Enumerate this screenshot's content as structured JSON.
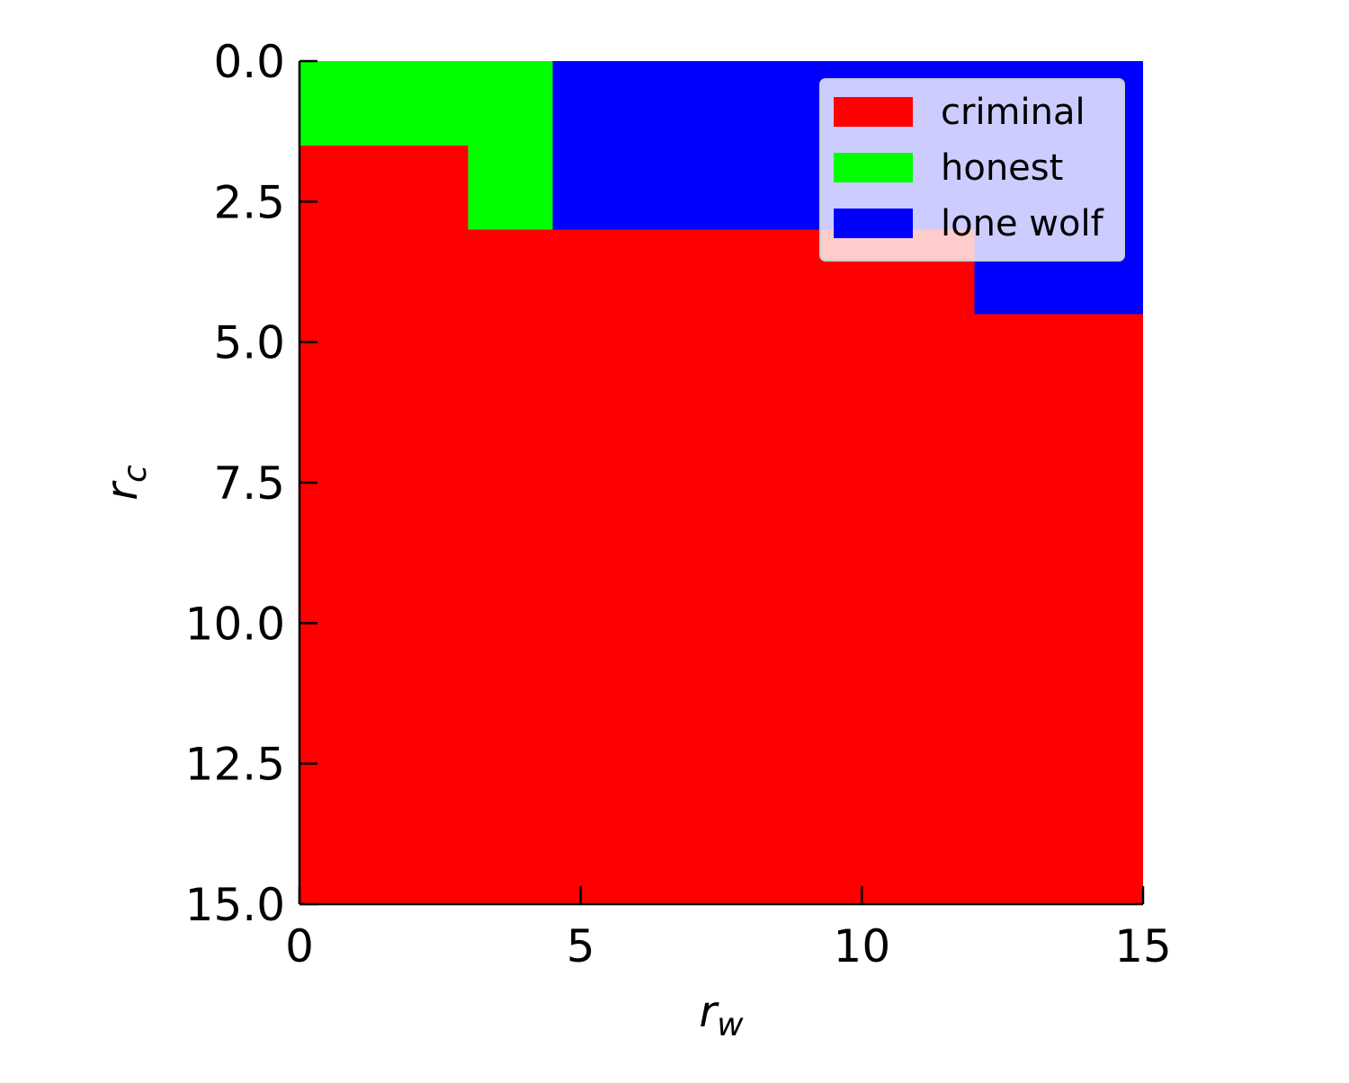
{
  "chart_data": {
    "type": "heatmap",
    "title": "",
    "xlabel": {
      "main": "r",
      "sub": "w"
    },
    "ylabel": {
      "main": "r",
      "sub": "c"
    },
    "xlim": [
      0,
      15
    ],
    "ylim": [
      15,
      0
    ],
    "y_inverted": true,
    "xticks": [
      "0",
      "5",
      "10",
      "15"
    ],
    "yticks": [
      "0.0",
      "2.5",
      "5.0",
      "7.5",
      "10.0",
      "12.5",
      "15.0"
    ],
    "grid_step": 1.5,
    "legend_placement": "top-right",
    "categories": [
      {
        "name": "criminal",
        "color": "#ff0000"
      },
      {
        "name": "honest",
        "color": "#00ff00"
      },
      {
        "name": "lone wolf",
        "color": "#0000ff"
      }
    ],
    "regions": [
      {
        "category": "criminal",
        "x": [
          0,
          15
        ],
        "y": [
          0,
          15
        ]
      },
      {
        "category": "honest",
        "x": [
          0,
          3
        ],
        "y": [
          0,
          1.5
        ]
      },
      {
        "category": "honest",
        "x": [
          3,
          4.5
        ],
        "y": [
          0,
          3
        ]
      },
      {
        "category": "lone wolf",
        "x": [
          4.5,
          15
        ],
        "y": [
          0,
          3
        ]
      },
      {
        "category": "lone wolf",
        "x": [
          12,
          15
        ],
        "y": [
          3,
          4.5
        ]
      }
    ]
  }
}
